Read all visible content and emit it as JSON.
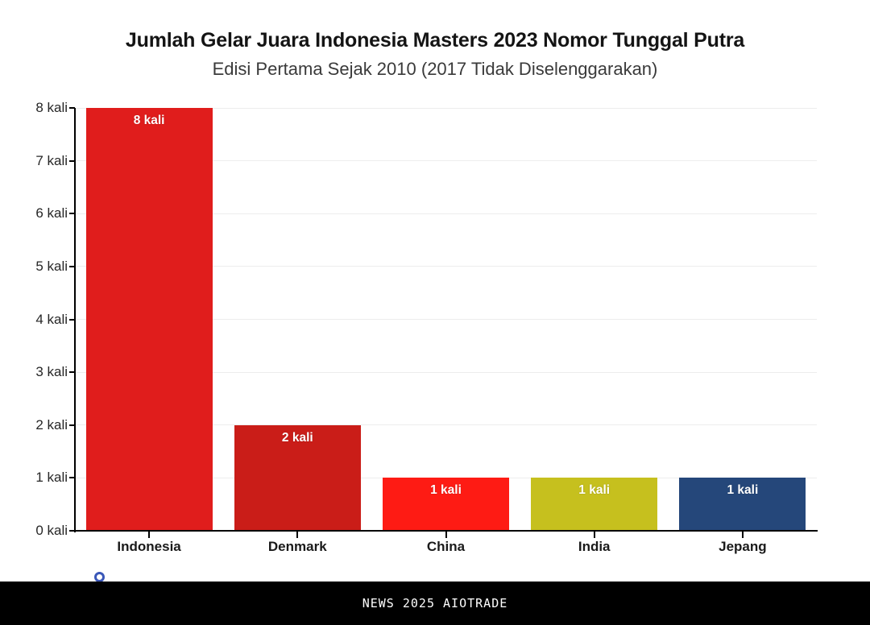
{
  "header": {
    "title": "Jumlah Gelar Juara Indonesia Masters 2023 Nomor Tunggal Putra",
    "subtitle": "Edisi Pertama Sejak 2010 (2017 Tidak Diselenggarakan)"
  },
  "chart_data": {
    "type": "bar",
    "title": "Jumlah Gelar Juara Indonesia Masters 2023 Nomor Tunggal Putra",
    "subtitle": "Edisi Pertama Sejak 2010 (2017 Tidak Diselenggarakan)",
    "categories": [
      "Indonesia",
      "Denmark",
      "China",
      "India",
      "Jepang"
    ],
    "values": [
      8,
      2,
      1,
      1,
      1
    ],
    "bar_labels": [
      "8 kali",
      "2 kali",
      "1 kali",
      "1 kali",
      "1 kali"
    ],
    "bar_colors": [
      "#e01d1c",
      "#ca1d18",
      "#fe1b14",
      "#c6c01e",
      "#25477a"
    ],
    "xlabel": "",
    "ylabel": "",
    "ylim": [
      0,
      8
    ],
    "yticks": [
      0,
      1,
      2,
      3,
      4,
      5,
      6,
      7,
      8
    ],
    "ytick_labels": [
      "0 kali",
      "1 kali",
      "2 kali",
      "3 kali",
      "4 kali",
      "5 kali",
      "6 kali",
      "7 kali",
      "8 kali"
    ],
    "grid": "horizontal",
    "legend": "none",
    "colors": {
      "gridline": "#ededed",
      "axis": "#000000",
      "tick_label": "#262626",
      "category_label": "#1a1a1a",
      "value_label": "#ffffff"
    }
  },
  "footer": {
    "text": "NEWS 2025 AIOTRADE",
    "background_color": "#000000",
    "text_color": "#ffffff"
  },
  "decor": {
    "ring_icon_color": "#3a57b8"
  }
}
